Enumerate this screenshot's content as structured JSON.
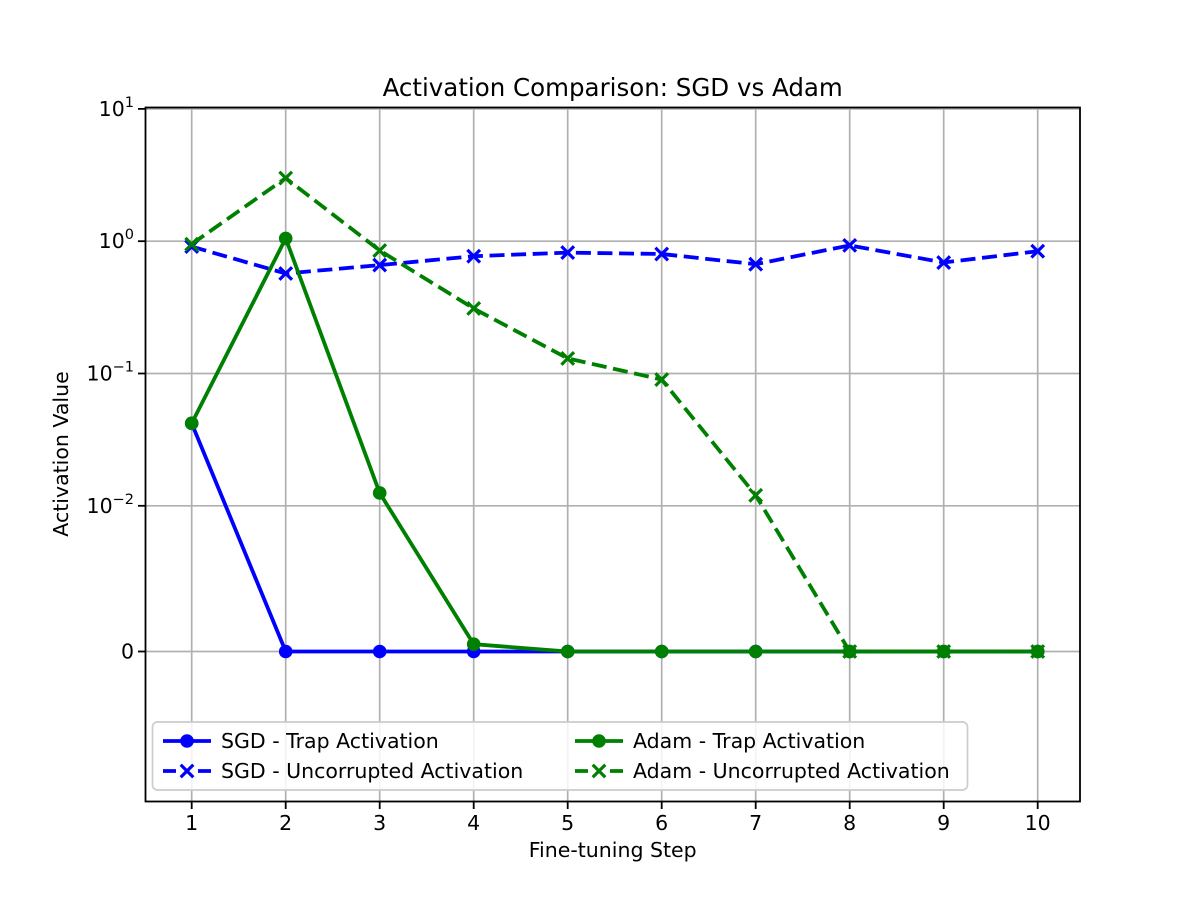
{
  "chart_data": {
    "type": "line",
    "title": "Activation Comparison: SGD vs Adam",
    "xlabel": "Fine-tuning Step",
    "ylabel": "Activation Value",
    "x": [
      1,
      2,
      3,
      4,
      5,
      6,
      7,
      8,
      9,
      10
    ],
    "x_ticks": [
      "1",
      "2",
      "3",
      "4",
      "5",
      "6",
      "7",
      "8",
      "9",
      "10"
    ],
    "y_ticks": [
      {
        "value": 10,
        "base": "10",
        "exp": "1"
      },
      {
        "value": 1,
        "base": "10",
        "exp": "0"
      },
      {
        "value": 0.1,
        "base": "10",
        "exp": "−1"
      },
      {
        "value": 0.01,
        "base": "10",
        "exp": "−2"
      },
      {
        "value": 0,
        "base": "0",
        "exp": ""
      }
    ],
    "yscale": "symlog",
    "linthresh": 0.01,
    "ylim": [
      -0.0103,
      10
    ],
    "grid": true,
    "legend_position": "lower left, 2 columns",
    "series": [
      {
        "name": "SGD - Trap Activation",
        "color": "#0000ff",
        "style": "solid",
        "marker": "circle",
        "values": [
          0.042,
          0,
          0,
          0,
          0,
          0,
          0,
          0,
          0,
          0
        ]
      },
      {
        "name": "SGD - Uncorrupted Activation",
        "color": "#0000ff",
        "style": "dashed",
        "marker": "x",
        "values": [
          0.91,
          0.57,
          0.66,
          0.77,
          0.82,
          0.8,
          0.67,
          0.93,
          0.69,
          0.84
        ]
      },
      {
        "name": "Adam - Trap Activation",
        "color": "#008000",
        "style": "solid",
        "marker": "circle",
        "values": [
          0.042,
          1.05,
          0.0125,
          0.0005,
          0,
          0,
          0,
          0,
          0,
          0
        ]
      },
      {
        "name": "Adam - Uncorrupted Activation",
        "color": "#008000",
        "style": "dashed",
        "marker": "x",
        "values": [
          0.95,
          3.0,
          0.85,
          0.31,
          0.13,
          0.09,
          0.012,
          0,
          0,
          0
        ]
      }
    ]
  },
  "style": {
    "sgd_color": "#0000ff",
    "adam_color": "#008000",
    "grid_color": "#b0b0b0",
    "axis_color": "#000000",
    "legend_edge_color": "#cccccc",
    "background": "#ffffff"
  }
}
